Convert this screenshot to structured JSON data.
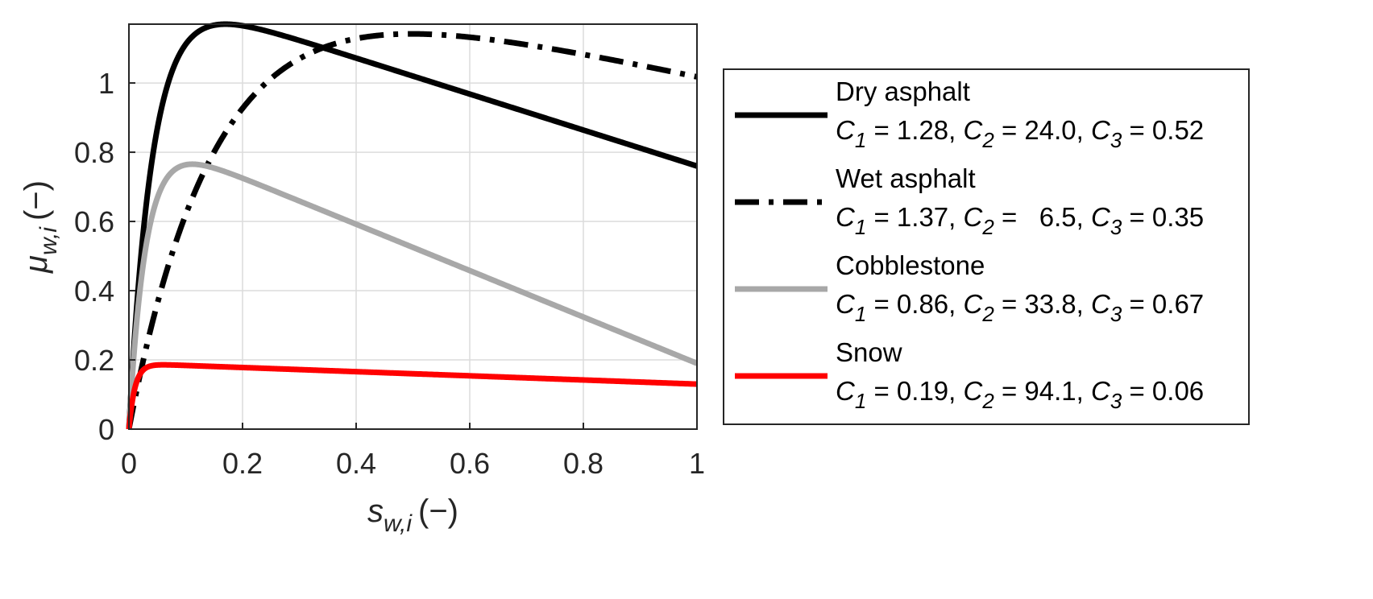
{
  "chart_data": {
    "type": "line",
    "title": "",
    "xlabel": {
      "main": "s",
      "sub": "w,i",
      "unit": "(−)"
    },
    "ylabel": {
      "main": "μ",
      "sub": "w,i",
      "unit": "(−)"
    },
    "xlim": [
      0,
      1
    ],
    "ylim": [
      0,
      1.17
    ],
    "xticks": [
      0,
      0.2,
      0.4,
      0.6,
      0.8,
      1
    ],
    "xtick_labels": [
      "0",
      "0.2",
      "0.4",
      "0.6",
      "0.8",
      "1"
    ],
    "yticks": [
      0,
      0.2,
      0.4,
      0.6,
      0.8,
      1
    ],
    "ytick_labels": [
      "0",
      "0.2",
      "0.4",
      "0.6",
      "0.8",
      "1"
    ],
    "grid": true,
    "model": "mu = C1*(1 - exp(-C2*s)) - C3*s",
    "legend_placement": "outside-right",
    "series": [
      {
        "name": "Dry asphalt",
        "C1": 1.28,
        "C2": 24.0,
        "C3": 0.52,
        "params_text": {
          "c1": "1.28",
          "c2": "24.0",
          "c3": "0.52"
        },
        "color": "#000000",
        "style": "solid"
      },
      {
        "name": "Wet asphalt",
        "C1": 1.37,
        "C2": 6.5,
        "C3": 0.35,
        "params_text": {
          "c1": "1.37",
          "c2": "  6.5",
          "c3": "0.35"
        },
        "color": "#000000",
        "style": "dashdot"
      },
      {
        "name": "Cobblestone",
        "C1": 0.86,
        "C2": 33.8,
        "C3": 0.67,
        "params_text": {
          "c1": "0.86",
          "c2": "33.8",
          "c3": "0.67"
        },
        "color": "#a8a8a8",
        "style": "solid"
      },
      {
        "name": "Snow",
        "C1": 0.19,
        "C2": 94.1,
        "C3": 0.06,
        "params_text": {
          "c1": "0.19",
          "c2": "94.1",
          "c3": "0.06"
        },
        "color": "#ff0000",
        "style": "solid"
      }
    ]
  }
}
